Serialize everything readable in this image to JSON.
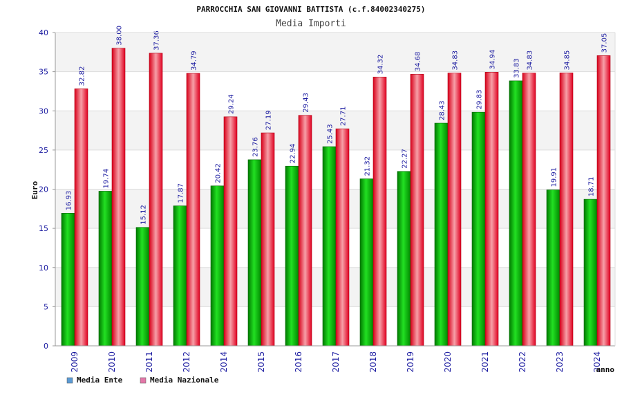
{
  "chart_data": {
    "type": "bar",
    "title": "PARROCCHIA SAN GIOVANNI BATTISTA (c.f.84002340275)",
    "subtitle": "Media Importi",
    "ylabel": "Euro",
    "xlabel": "anno",
    "ylim": [
      0,
      40
    ],
    "yticks": [
      0,
      5,
      10,
      15,
      20,
      25,
      30,
      35,
      40
    ],
    "grid": true,
    "legend_position": "bottom-left",
    "categories": [
      "2009",
      "2010",
      "2011",
      "2012",
      "2014",
      "2015",
      "2016",
      "2017",
      "2018",
      "2019",
      "2020",
      "2021",
      "2022",
      "2023",
      "2024"
    ],
    "series": [
      {
        "name": "Media Ente",
        "color": "#00aa00",
        "legend_color": "#5b9bd5",
        "values": [
          16.93,
          19.74,
          15.12,
          17.87,
          20.42,
          23.76,
          22.94,
          25.43,
          21.32,
          22.27,
          28.43,
          29.83,
          33.83,
          19.91,
          18.71
        ],
        "labels": [
          "16.93",
          "19.74",
          "15.12",
          "17.87",
          "20.42",
          "23.76",
          "22.94",
          "25.43",
          "21.32",
          "22.27",
          "28.43",
          "29.83",
          "33.83",
          "19.91",
          "18.71"
        ]
      },
      {
        "name": "Media Nazionale",
        "color": "#ee1c2e",
        "legend_color": "#e377a8",
        "values": [
          32.82,
          38.0,
          37.36,
          34.79,
          29.24,
          27.19,
          29.43,
          27.71,
          34.32,
          34.68,
          34.83,
          34.94,
          34.83,
          34.85,
          37.05
        ],
        "labels": [
          "32.82",
          "38.00",
          "37.36",
          "34.79",
          "29.24",
          "27.19",
          "29.43",
          "27.71",
          "34.32",
          "34.68",
          "34.83",
          "34.94",
          "34.83",
          "34.85",
          "37.05"
        ]
      }
    ]
  }
}
